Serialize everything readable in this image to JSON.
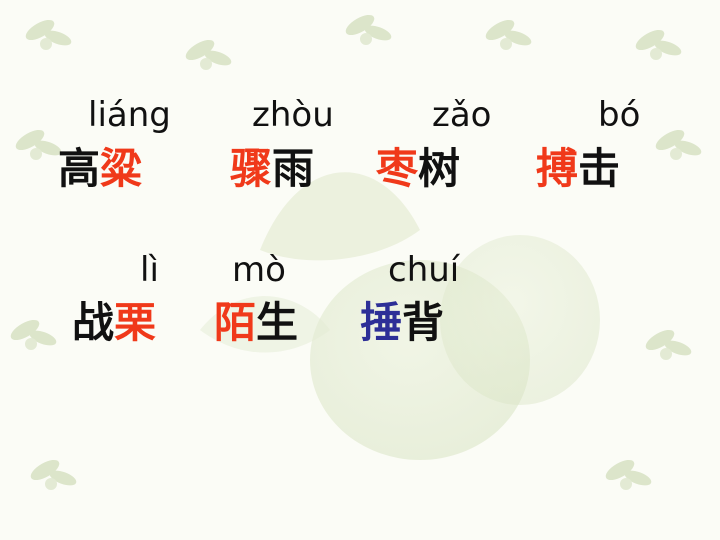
{
  "colors": {
    "red": "#f0391a",
    "blue": "#2d2f97",
    "black": "#111111",
    "leaf": "#c9d8b0"
  },
  "row1": {
    "pinyin": [
      "liáng",
      "zhòu",
      "zǎo",
      "bó"
    ],
    "words": [
      {
        "plain_before": "高",
        "highlight": "粱",
        "plain_after": "",
        "color": "red"
      },
      {
        "plain_before": "",
        "highlight": "骤",
        "plain_after": "雨",
        "color": "red"
      },
      {
        "plain_before": "",
        "highlight": "枣",
        "plain_after": "树",
        "color": "red"
      },
      {
        "plain_before": "",
        "highlight": "搏",
        "plain_after": "击",
        "color": "red"
      }
    ]
  },
  "row2": {
    "pinyin": [
      "lì",
      "mò",
      "chuí"
    ],
    "words": [
      {
        "plain_before": "战",
        "highlight": "栗",
        "plain_after": "",
        "color": "red"
      },
      {
        "plain_before": "",
        "highlight": "陌",
        "plain_after": "生",
        "color": "red"
      },
      {
        "plain_before": "",
        "highlight": "捶",
        "plain_after": "背",
        "color": "blue"
      }
    ]
  },
  "decor": {
    "background": "faint-leaf-pattern"
  }
}
